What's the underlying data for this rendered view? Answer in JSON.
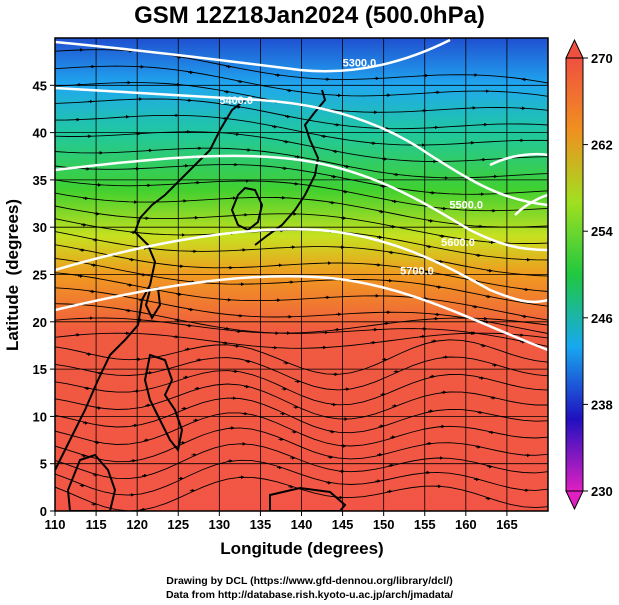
{
  "title": "GSM 12Z18Jan2024 (500.0hPa)",
  "credits": [
    "Drawing by DCL (https://www.gfd-dennou.org/library/dcl/)",
    "Data from http://database.rish.kyoto-u.ac.jp/arch/jmadata/"
  ],
  "chart_data": {
    "type": "heatmap",
    "title": "GSM 12Z18Jan2024 (500.0hPa)",
    "xlabel": "Longitude (degrees)",
    "ylabel": "Latitude  (degrees)",
    "xlim": [
      110,
      170
    ],
    "ylim": [
      0,
      50
    ],
    "x_ticks": [
      110,
      115,
      120,
      125,
      130,
      135,
      140,
      145,
      150,
      155,
      160,
      165
    ],
    "y_ticks": [
      0,
      5,
      10,
      15,
      20,
      25,
      30,
      35,
      40,
      45
    ],
    "colorbar": {
      "min": 230,
      "max": 270,
      "ticks": [
        230,
        238,
        246,
        254,
        262,
        270
      ],
      "colors": [
        "#e020c0",
        "#2010c0",
        "#18a8f0",
        "#20c840",
        "#a0e020",
        "#f09020",
        "#f05040"
      ]
    },
    "contour_labels": [
      "5300.0",
      "5400.0",
      "5500.0",
      "5600.0",
      "5700.0"
    ],
    "overlays": [
      "streamlines",
      "coastlines",
      "geopotential height contours"
    ]
  }
}
